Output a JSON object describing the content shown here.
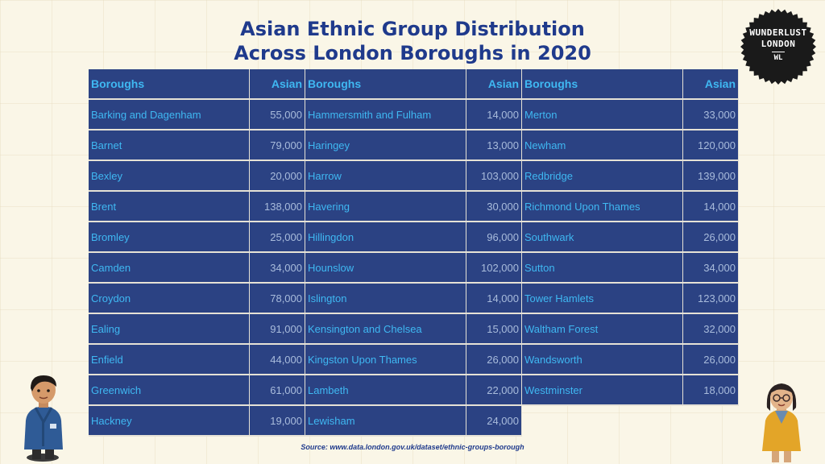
{
  "title": {
    "line1": "Asian Ethnic Group Distribution",
    "line2": "Across London Boroughs in 2020"
  },
  "logo": {
    "line1": "WUNDERLUST",
    "line2": "LONDON",
    "line3": "WL"
  },
  "source": "Source: www.data.london.gov.uk/dataset/ethnic-groups-borough",
  "colors": {
    "background": "#faf6e7",
    "table_fill": "#2b4283",
    "header_text": "#3fb8f2",
    "value_text": "#a9bcdc",
    "title_text": "#1f3a8c",
    "logo_fill": "#1a1a1a"
  },
  "chart_data": {
    "type": "table",
    "title": "Asian Ethnic Group Distribution Across London Boroughs in 2020",
    "columns": [
      "Boroughs",
      "Asian"
    ],
    "tables": [
      {
        "headers": [
          "Boroughs",
          "Asian"
        ],
        "rows": [
          [
            "Barking and Dagenham",
            "55,000"
          ],
          [
            "Barnet",
            "79,000"
          ],
          [
            "Bexley",
            "20,000"
          ],
          [
            "Brent",
            "138,000"
          ],
          [
            "Bromley",
            "25,000"
          ],
          [
            "Camden",
            "34,000"
          ],
          [
            "Croydon",
            "78,000"
          ],
          [
            "Ealing",
            "91,000"
          ],
          [
            "Enfield",
            "44,000"
          ],
          [
            "Greenwich",
            "61,000"
          ],
          [
            "Hackney",
            "19,000"
          ]
        ]
      },
      {
        "headers": [
          "Boroughs",
          "Asian"
        ],
        "rows": [
          [
            "Hammersmith and Fulham",
            "14,000"
          ],
          [
            "Haringey",
            "13,000"
          ],
          [
            "Harrow",
            "103,000"
          ],
          [
            "Havering",
            "30,000"
          ],
          [
            "Hillingdon",
            "96,000"
          ],
          [
            "Hounslow",
            "102,000"
          ],
          [
            "Islington",
            "14,000"
          ],
          [
            "Kensington and Chelsea",
            "15,000"
          ],
          [
            "Kingston Upon Thames",
            "26,000"
          ],
          [
            "Lambeth",
            "22,000"
          ],
          [
            "Lewisham",
            "24,000"
          ]
        ]
      },
      {
        "headers": [
          "Boroughs",
          "Asian"
        ],
        "rows": [
          [
            "Merton",
            "33,000"
          ],
          [
            "Newham",
            "120,000"
          ],
          [
            "Redbridge",
            "139,000"
          ],
          [
            "Richmond Upon Thames",
            "14,000"
          ],
          [
            "Southwark",
            "26,000"
          ],
          [
            "Sutton",
            "34,000"
          ],
          [
            "Tower Hamlets",
            "123,000"
          ],
          [
            "Waltham Forest",
            "32,000"
          ],
          [
            "Wandsworth",
            "26,000"
          ],
          [
            "Westminster",
            "18,000"
          ]
        ]
      }
    ]
  }
}
